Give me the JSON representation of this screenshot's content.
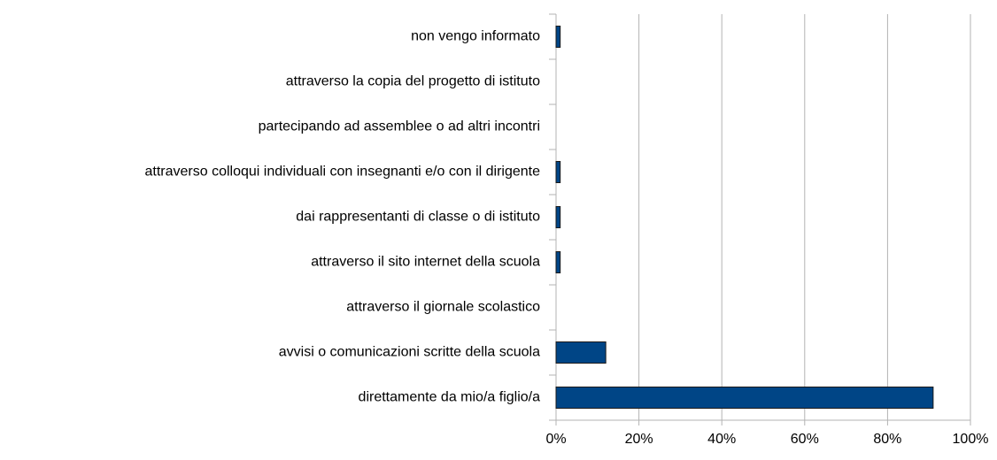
{
  "chart_data": {
    "type": "bar",
    "orientation": "horizontal",
    "categories": [
      "non vengo informato",
      "attraverso la copia del progetto di istituto",
      "partecipando ad assemblee o ad altri incontri",
      "attraverso colloqui individuali con insegnanti e/o con il dirigente",
      "dai rappresentanti di classe o di istituto",
      "attraverso il sito internet della scuola",
      "attraverso il giornale scolastico",
      "avvisi o comunicazioni scritte della scuola",
      "direttamente da mio/a figlio/a"
    ],
    "values": [
      1,
      0,
      0,
      1,
      1,
      1,
      0,
      12,
      91
    ],
    "color": "#004586",
    "xlim": [
      0,
      100
    ],
    "xticks": [
      {
        "value": 0,
        "label": "0%"
      },
      {
        "value": 20,
        "label": "20%"
      },
      {
        "value": 40,
        "label": "40%"
      },
      {
        "value": 60,
        "label": "60%"
      },
      {
        "value": 80,
        "label": "80%"
      },
      {
        "value": 100,
        "label": "100%"
      }
    ],
    "grid": true
  }
}
